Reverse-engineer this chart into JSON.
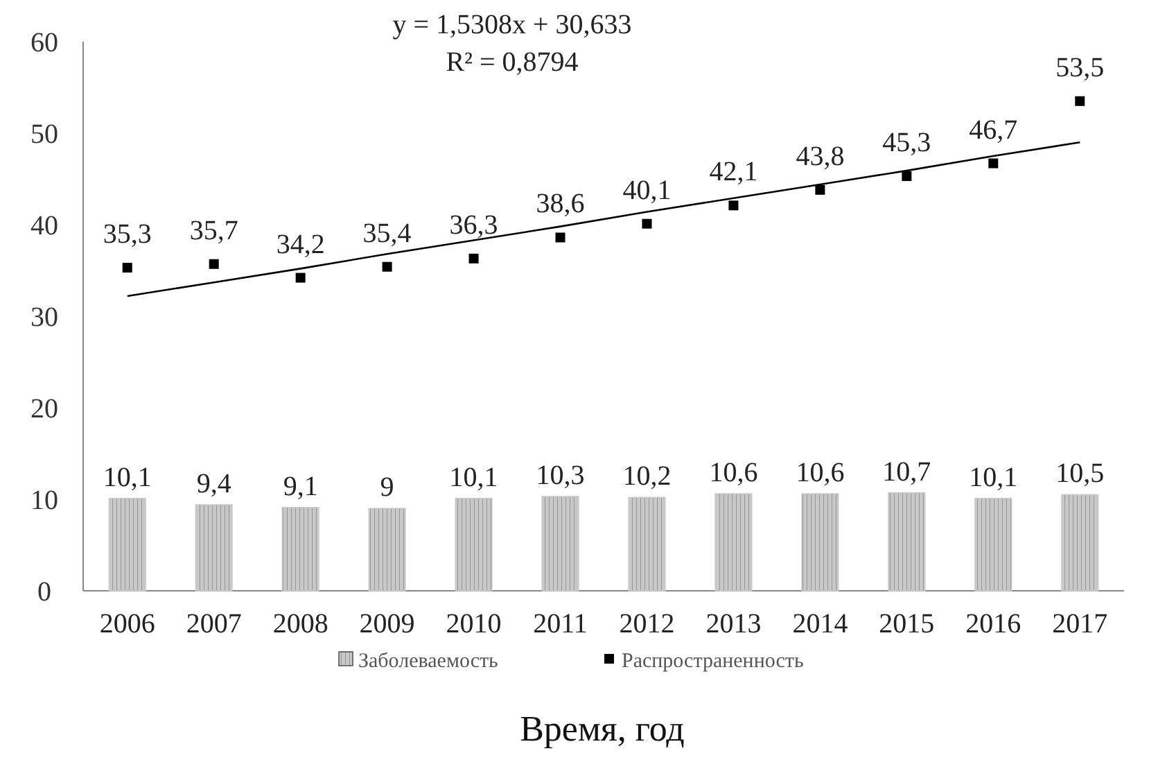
{
  "chart_data": {
    "type": "bar",
    "xlabel": "Время, год",
    "categories": [
      "2006",
      "2007",
      "2008",
      "2009",
      "2010",
      "2011",
      "2012",
      "2013",
      "2014",
      "2015",
      "2016",
      "2017"
    ],
    "series": [
      {
        "name": "Заболеваемость",
        "color": "#c8c8c8",
        "values": [
          10.1,
          9.4,
          9.1,
          9,
          10.1,
          10.3,
          10.2,
          10.6,
          10.6,
          10.7,
          10.1,
          10.5
        ],
        "value_labels": [
          "10,1",
          "9,4",
          "9,1",
          "9",
          "10,1",
          "10,3",
          "10,2",
          "10,6",
          "10,6",
          "10,7",
          "10,1",
          "10,5"
        ]
      },
      {
        "name": "Распространенность",
        "type": "scatter",
        "marker": "square",
        "color": "#000000",
        "values": [
          35.3,
          35.7,
          34.2,
          35.4,
          36.3,
          38.6,
          40.1,
          42.1,
          43.8,
          45.3,
          46.7,
          53.5
        ],
        "value_labels": [
          "35,3",
          "35,7",
          "34,2",
          "35,4",
          "36,3",
          "38,6",
          "40,1",
          "42,1",
          "43,8",
          "45,3",
          "46,7",
          "53,5"
        ]
      },
      {
        "type": "line",
        "color": "#000000",
        "values": [
          32.2,
          33.7,
          35.2,
          36.8,
          38.3,
          39.8,
          41.4,
          42.9,
          44.4,
          45.9,
          47.5,
          49.0
        ]
      }
    ],
    "annotations": [
      "y = 1,5308x + 30,633",
      "R² = 0,8794"
    ],
    "ylim": [
      0,
      60
    ],
    "yticks": [
      0,
      10,
      20,
      30,
      40,
      50,
      60
    ],
    "grid": false,
    "legend": "bottom"
  }
}
